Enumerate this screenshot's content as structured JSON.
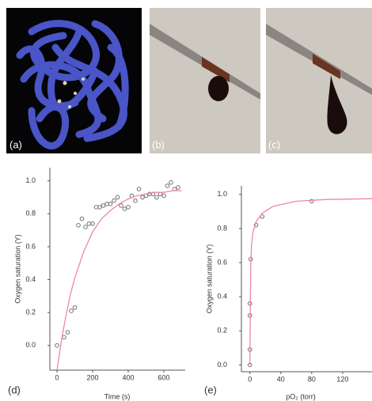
{
  "figure": {
    "panel_labels": [
      "(a)",
      "(b)",
      "(c)"
    ]
  },
  "chart_data": [
    {
      "type": "scatter",
      "annotation": "(d)",
      "xlabel": "Time (s)",
      "ylabel": "Oxygen saturation (Y)",
      "xlim": [
        -40,
        720
      ],
      "ylim": [
        -0.15,
        1.08
      ],
      "xticks": [
        0,
        200,
        400,
        600
      ],
      "yticks": [
        {
          "value": 0,
          "label": "0.0"
        },
        {
          "value": 0.2,
          "label": "0.2"
        },
        {
          "value": 0.4,
          "label": "0.4"
        },
        {
          "value": 0.6,
          "label": "0.6"
        },
        {
          "value": 0.8,
          "label": "0.8"
        },
        {
          "value": 1,
          "label": "1.0"
        }
      ],
      "series": [
        {
          "kind": "points",
          "color": "#707070",
          "x": [
            0,
            40,
            60,
            80,
            100,
            120,
            140,
            160,
            180,
            200,
            220,
            240,
            260,
            280,
            300,
            320,
            340,
            360,
            380,
            400,
            420,
            440,
            460,
            480,
            500,
            520,
            540,
            560,
            580,
            600,
            620,
            640,
            660,
            680
          ],
          "values": [
            0.0,
            0.05,
            0.08,
            0.21,
            0.23,
            0.73,
            0.77,
            0.72,
            0.74,
            0.74,
            0.84,
            0.84,
            0.85,
            0.86,
            0.86,
            0.88,
            0.9,
            0.85,
            0.83,
            0.84,
            0.91,
            0.88,
            0.95,
            0.9,
            0.91,
            0.92,
            0.92,
            0.9,
            0.92,
            0.91,
            0.97,
            0.99,
            0.95,
            0.96
          ]
        },
        {
          "kind": "fit",
          "color": "#ec8a9c",
          "x": [
            0,
            25,
            50,
            75,
            100,
            150,
            200,
            250,
            300,
            350,
            400,
            450,
            500,
            550,
            600,
            650,
            700
          ],
          "values": [
            -0.15,
            0.03,
            0.18,
            0.31,
            0.41,
            0.57,
            0.69,
            0.77,
            0.82,
            0.86,
            0.89,
            0.91,
            0.92,
            0.93,
            0.93,
            0.94,
            0.94
          ]
        }
      ]
    },
    {
      "type": "scatter",
      "annotation": "(e)",
      "xlabel": "pO₂ (torr)",
      "ylabel": "Oxygen saturation (Y)",
      "xlim": [
        -11,
        158
      ],
      "ylim": [
        -0.04,
        1.05
      ],
      "xticks": [
        0,
        40,
        80,
        120
      ],
      "yticks": [
        {
          "value": 0,
          "label": "0.0"
        },
        {
          "value": 0.2,
          "label": "0.2"
        },
        {
          "value": 0.4,
          "label": "0.4"
        },
        {
          "value": 0.6,
          "label": "0.6"
        },
        {
          "value": 0.8,
          "label": "0.8"
        },
        {
          "value": 1,
          "label": "1.0"
        }
      ],
      "series": [
        {
          "kind": "points",
          "color": "#707070",
          "x": [
            0,
            0,
            0,
            0,
            1,
            8,
            16,
            80
          ],
          "values": [
            0.0,
            0.09,
            0.29,
            0.36,
            0.62,
            0.82,
            0.87,
            0.96
          ]
        },
        {
          "kind": "fit",
          "color": "#ec8a9c",
          "x": [
            0,
            0.5,
            1,
            2,
            4,
            8,
            16,
            30,
            60,
            100,
            158
          ],
          "values": [
            0.0,
            0.3,
            0.55,
            0.7,
            0.78,
            0.84,
            0.89,
            0.93,
            0.96,
            0.97,
            0.975
          ]
        }
      ]
    }
  ]
}
